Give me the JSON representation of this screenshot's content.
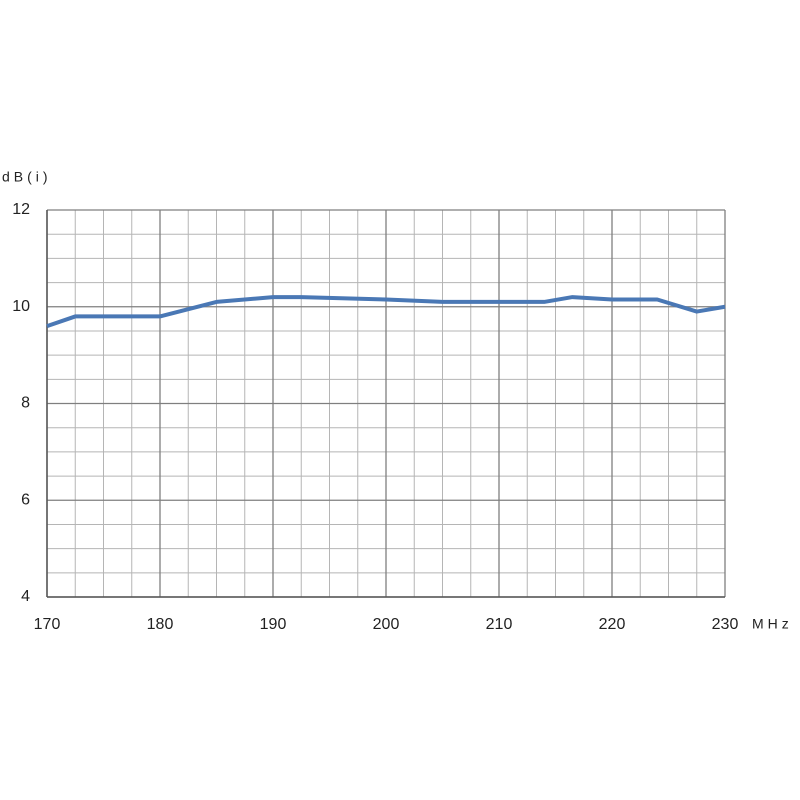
{
  "chart_data": {
    "type": "line",
    "y_label": "dB(i)",
    "x_label": "MHz",
    "x": [
      170,
      172.5,
      180,
      185,
      190,
      192.5,
      200,
      205,
      210,
      214,
      216.5,
      220,
      224,
      227.5,
      230
    ],
    "values": [
      9.6,
      9.8,
      9.8,
      10.1,
      10.2,
      10.2,
      10.15,
      10.1,
      10.1,
      10.1,
      10.2,
      10.15,
      10.15,
      9.9,
      10.0
    ],
    "color": "#4a78b5",
    "xlim": [
      170,
      230
    ],
    "xticks": [
      170,
      180,
      190,
      200,
      210,
      220,
      230
    ],
    "ylim": [
      4,
      12
    ],
    "yticks": [
      4,
      6,
      8,
      10,
      12
    ],
    "grid": true
  }
}
